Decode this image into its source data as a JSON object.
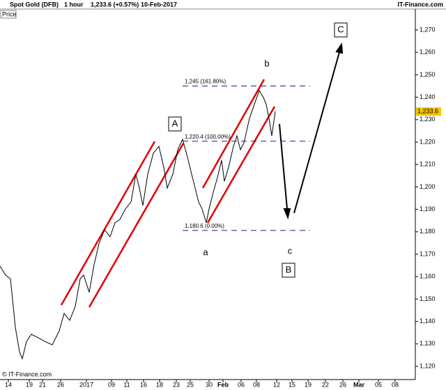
{
  "chart_data": {
    "type": "line",
    "title": "Spot Gold (DFB)",
    "interval": "1 hour",
    "quote": "1,233.6 (+0.57%)",
    "date": "10-Feb-2017",
    "source": "IT-Finance.com",
    "copyright": "© IT-Finance.com",
    "y_label": "Price",
    "last_price": {
      "value": 1233.6,
      "label": "1,233.6"
    },
    "series": [
      {
        "name": "Spot Gold",
        "color": "#000000",
        "x": [
          0,
          8,
          15,
          18,
          22,
          28,
          32,
          38,
          45,
          55,
          65,
          75,
          85,
          92,
          100,
          108,
          115,
          120,
          128,
          135,
          142,
          150,
          158,
          165,
          172,
          180,
          188,
          195,
          200,
          205,
          212,
          220,
          228,
          235,
          240,
          248,
          255,
          262,
          268,
          275,
          280,
          285,
          290,
          296,
          300,
          305,
          312,
          318,
          322,
          328,
          335,
          340,
          345,
          350,
          358,
          365,
          372,
          378,
          382,
          386,
          390,
          395
        ],
        "values": [
          1164.7,
          1160.7,
          1159,
          1150,
          1137.4,
          1126.5,
          1123.4,
          1131,
          1134.3,
          1132.7,
          1131,
          1129.6,
          1135.8,
          1143.6,
          1140.5,
          1146.7,
          1159,
          1160.7,
          1153,
          1165.3,
          1174.7,
          1180.9,
          1177.8,
          1184,
          1185.5,
          1190.2,
          1193.3,
          1205.7,
          1199.5,
          1191.7,
          1205.7,
          1215,
          1218.1,
          1208.8,
          1199.5,
          1205.7,
          1216.6,
          1221.2,
          1214.5,
          1205.7,
          1199.5,
          1193.3,
          1190.2,
          1184,
          1190.2,
          1196.4,
          1204.2,
          1211.9,
          1202.5,
          1208.8,
          1218.1,
          1222.8,
          1216.6,
          1219.7,
          1230.6,
          1236.8,
          1243,
          1239.9,
          1236.8,
          1230.6,
          1222.8,
          1233.7
        ]
      }
    ],
    "xlim": [
      0,
      596
    ],
    "ylim": [
      1114.1,
      1278.7
    ],
    "xticks": [
      {
        "value": 12,
        "label": "14"
      },
      {
        "value": 42,
        "label": "19"
      },
      {
        "value": 61,
        "label": "21"
      },
      {
        "value": 87,
        "label": "26"
      },
      {
        "value": 124,
        "label": "2017"
      },
      {
        "value": 160,
        "label": "09"
      },
      {
        "value": 182,
        "label": "11"
      },
      {
        "value": 206,
        "label": "16"
      },
      {
        "value": 229,
        "label": "18"
      },
      {
        "value": 253,
        "label": "23"
      },
      {
        "value": 273,
        "label": "25"
      },
      {
        "value": 300,
        "label": "30"
      },
      {
        "value": 320,
        "label": "Feb"
      },
      {
        "value": 346,
        "label": "06"
      },
      {
        "value": 368,
        "label": "08"
      },
      {
        "value": 397,
        "label": "12"
      },
      {
        "value": 419,
        "label": "15"
      },
      {
        "value": 442,
        "label": "19"
      },
      {
        "value": 467,
        "label": "22"
      },
      {
        "value": 492,
        "label": "26"
      },
      {
        "value": 515,
        "label": "Mar"
      },
      {
        "value": 543,
        "label": "05"
      },
      {
        "value": 567,
        "label": "08"
      }
    ],
    "yticks": [
      {
        "value": 1120,
        "label": "1,120"
      },
      {
        "value": 1130,
        "label": "1,130"
      },
      {
        "value": 1140,
        "label": "1,140"
      },
      {
        "value": 1150,
        "label": "1,150"
      },
      {
        "value": 1160,
        "label": "1,160"
      },
      {
        "value": 1170,
        "label": "1,170"
      },
      {
        "value": 1180,
        "label": "1,180"
      },
      {
        "value": 1190,
        "label": "1,190"
      },
      {
        "value": 1200,
        "label": "1,200"
      },
      {
        "value": 1210,
        "label": "1,210"
      },
      {
        "value": 1220,
        "label": "1,220"
      },
      {
        "value": 1230,
        "label": "1,230"
      },
      {
        "value": 1240,
        "label": "1,240"
      },
      {
        "value": 1250,
        "label": "1,250"
      },
      {
        "value": 1260,
        "label": "1,260"
      },
      {
        "value": 1270,
        "label": "1,270"
      }
    ],
    "fib_levels": [
      {
        "value": 1245,
        "label": "1,245 (161.80%)"
      },
      {
        "value": 1220.4,
        "label": "1,220.4 (100.00%)"
      },
      {
        "value": 1180.6,
        "label": "1,180.6 (0.00%)"
      }
    ],
    "wave_labels": [
      "A",
      "b",
      "C",
      "a",
      "c",
      "B"
    ]
  }
}
